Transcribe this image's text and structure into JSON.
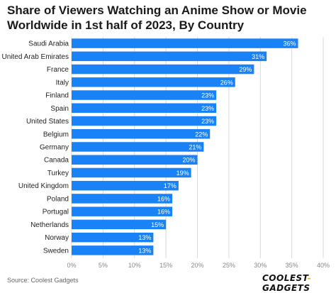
{
  "title": "Share of Viewers Watching an Anime Show or Movie Worldwide in 1st half of 2023, By Country",
  "source": "Source: Coolest Gadgets",
  "logo": {
    "part1": "COOLEST",
    "part2": "-",
    "part3": "GADGETS",
    "accent_color": "#f2a51a"
  },
  "colors": {
    "bar": "#1a82f7",
    "grid": "#d9d9d9",
    "label": "#222222",
    "tick": "#888888",
    "value": "#ffffff"
  },
  "chart_data": {
    "type": "bar",
    "orientation": "horizontal",
    "title": "Share of Viewers Watching an Anime Show or Movie Worldwide in 1st half of 2023, By Country",
    "categories": [
      "Saudi Arabia",
      "United Arab Emirates",
      "France",
      "Italy",
      "Finland",
      "Spain",
      "United States",
      "Belgium",
      "Germany",
      "Canada",
      "Turkey",
      "United Kingdom",
      "Poland",
      "Portugal",
      "Netherlands",
      "Norway",
      "Sweden"
    ],
    "values": [
      36,
      31,
      29,
      26,
      23,
      23,
      23,
      22,
      21,
      20,
      19,
      17,
      16,
      16,
      15,
      13,
      13
    ],
    "value_labels": [
      "36%",
      "31%",
      "29%",
      "26%",
      "23%",
      "23%",
      "23%",
      "22%",
      "21%",
      "20%",
      "19%",
      "17%",
      "16%",
      "16%",
      "15%",
      "13%",
      "13%"
    ],
    "xlim": [
      0,
      40
    ],
    "xticks": [
      "0%",
      "5%",
      "10%",
      "15%",
      "20%",
      "25%",
      "30%",
      "35%",
      "40%"
    ],
    "xlabel": "",
    "ylabel": "",
    "grid": "vertical"
  }
}
